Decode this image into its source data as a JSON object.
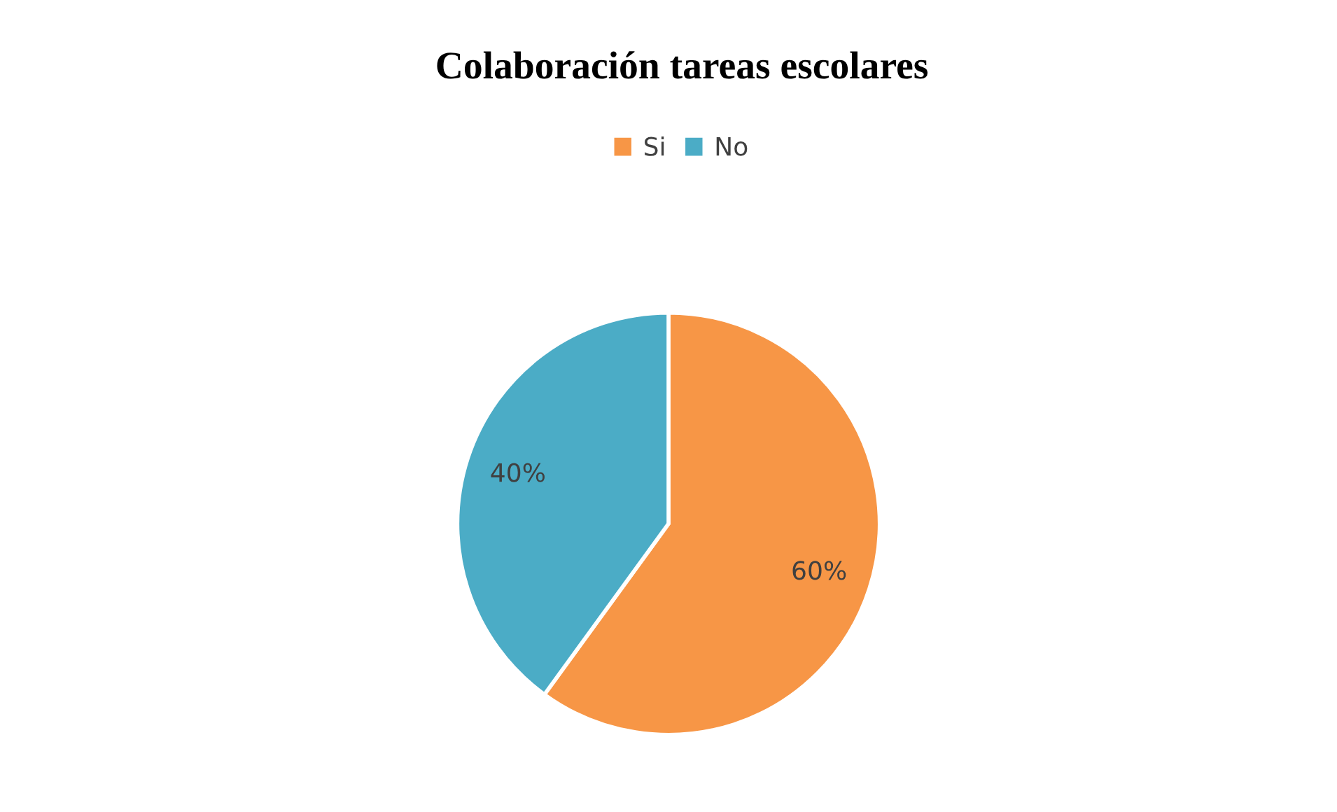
{
  "chart_data": {
    "type": "pie",
    "title": "Colaboración tareas escolares",
    "categories": [
      "Si",
      "No"
    ],
    "values": [
      60,
      40
    ],
    "colors": [
      "#f79646",
      "#4bacc6"
    ],
    "value_labels": [
      "60%",
      "40%"
    ],
    "legend": "top"
  }
}
